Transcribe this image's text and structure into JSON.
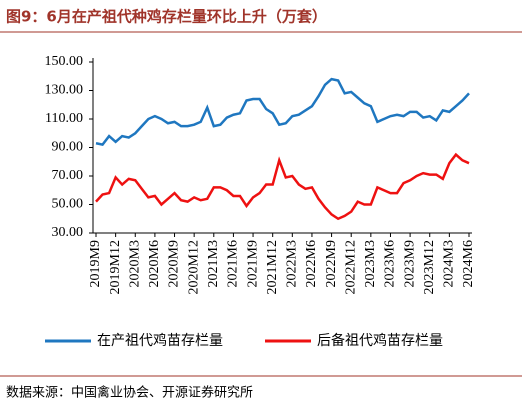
{
  "chart_data": {
    "type": "line",
    "title": "图9：6月在产祖代种鸡存栏量环比上升（万套）",
    "source": "数据来源：中国禽业协会、开源证券研究所",
    "categories": [
      "2019M9",
      null,
      null,
      "2019M12",
      null,
      null,
      "2020M3",
      null,
      null,
      "2020M6",
      null,
      null,
      "2020M9",
      null,
      null,
      "2020M12",
      null,
      null,
      "2021M3",
      null,
      null,
      "2021M6",
      null,
      null,
      "2021M9",
      null,
      null,
      "2021M12",
      null,
      null,
      "2022M3",
      null,
      null,
      "2022M6",
      null,
      null,
      "2022M9",
      null,
      null,
      "2022M12",
      null,
      null,
      "2023M3",
      null,
      null,
      "2023M6",
      null,
      null,
      "2023M9",
      null,
      null,
      "2023M12",
      null,
      null,
      "2024M3",
      null,
      null,
      "2024M6"
    ],
    "series": [
      {
        "name": "在产祖代鸡苗存栏量",
        "color": "#1f77c0",
        "values": [
          93,
          92,
          98,
          94,
          98,
          97,
          100,
          105,
          110,
          112,
          110,
          107,
          108,
          105,
          105,
          106,
          108,
          118,
          105,
          106,
          111,
          113,
          114,
          123,
          124,
          124,
          117,
          114,
          106,
          107,
          112,
          113,
          116,
          119,
          126,
          134,
          138,
          137,
          128,
          129,
          125,
          121,
          119,
          108,
          110,
          112,
          113,
          112,
          115,
          115,
          111,
          112,
          109,
          116,
          115,
          119,
          123,
          128
        ]
      },
      {
        "name": "后备祖代鸡苗存栏量",
        "color": "#ee1111",
        "values": [
          52,
          57,
          58,
          69,
          64,
          68,
          67,
          61,
          55,
          56,
          50,
          54,
          58,
          53,
          52,
          55,
          53,
          54,
          62,
          62,
          60,
          56,
          56,
          49,
          55,
          58,
          64,
          64,
          81,
          69,
          70,
          64,
          61,
          62,
          54,
          48,
          43,
          40,
          42,
          45,
          52,
          50,
          50,
          62,
          60,
          58,
          58,
          65,
          67,
          70,
          72,
          71,
          71,
          68,
          79,
          85,
          81,
          79
        ]
      }
    ],
    "ylim": [
      30,
      150
    ],
    "yticks": [
      {
        "value": 30,
        "label": "30.00"
      },
      {
        "value": 50,
        "label": "50.00"
      },
      {
        "value": 70,
        "label": "70.00"
      },
      {
        "value": 90,
        "label": "90.00"
      },
      {
        "value": 110,
        "label": "110.00"
      },
      {
        "value": 130,
        "label": "130.00"
      },
      {
        "value": 150,
        "label": "150.00"
      }
    ],
    "grid": false
  }
}
